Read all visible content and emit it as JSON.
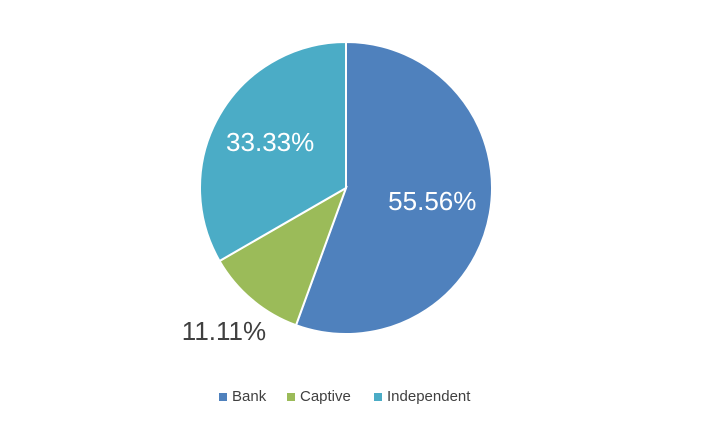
{
  "chart_data": {
    "type": "pie",
    "categories": [
      "Bank",
      "Captive",
      "Independent"
    ],
    "values": [
      55.56,
      11.11,
      33.33
    ],
    "value_labels": [
      "55.56%",
      "11.11%",
      "33.33%"
    ],
    "colors": [
      "#4f81bd",
      "#9bbb59",
      "#4bacc6"
    ],
    "legend": "bottom"
  }
}
